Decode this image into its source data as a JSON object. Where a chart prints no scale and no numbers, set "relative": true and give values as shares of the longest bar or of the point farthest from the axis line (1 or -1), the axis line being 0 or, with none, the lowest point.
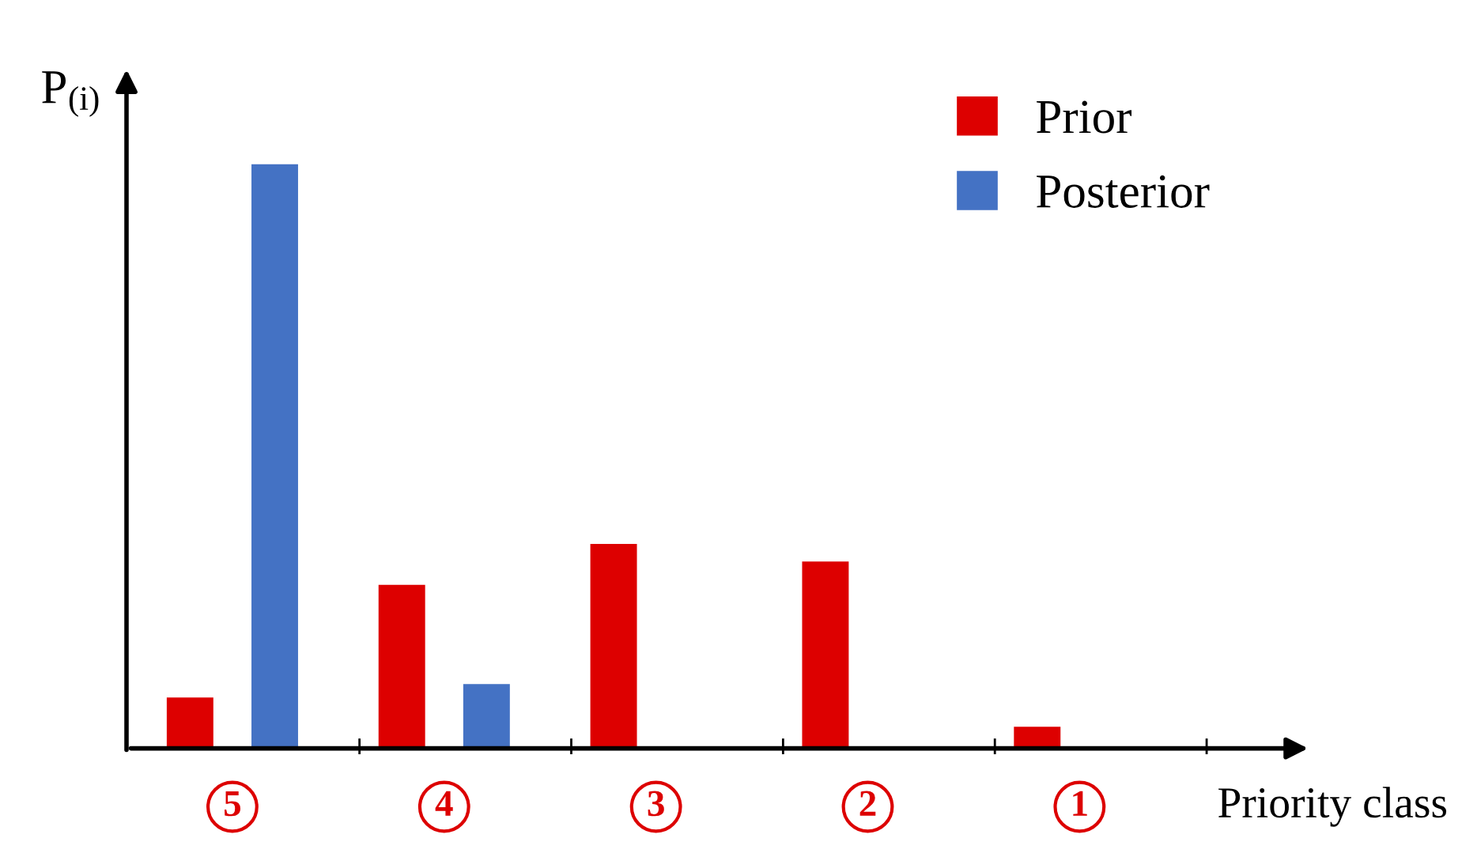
{
  "chart_data": {
    "type": "bar",
    "relative": true,
    "ylabel": "P$_{(i)}$",
    "xlabel": "Priority class",
    "categories": [
      "5",
      "4",
      "3",
      "2",
      "1"
    ],
    "series": [
      {
        "name": "Prior",
        "color": "#dd0000",
        "values": [
          0.087,
          0.28,
          0.35,
          0.32,
          0.037
        ]
      },
      {
        "name": "Posterior",
        "color": "#4472c4",
        "values": [
          1,
          0.11,
          null,
          null,
          null
        ]
      }
    ],
    "legend": "top right"
  }
}
